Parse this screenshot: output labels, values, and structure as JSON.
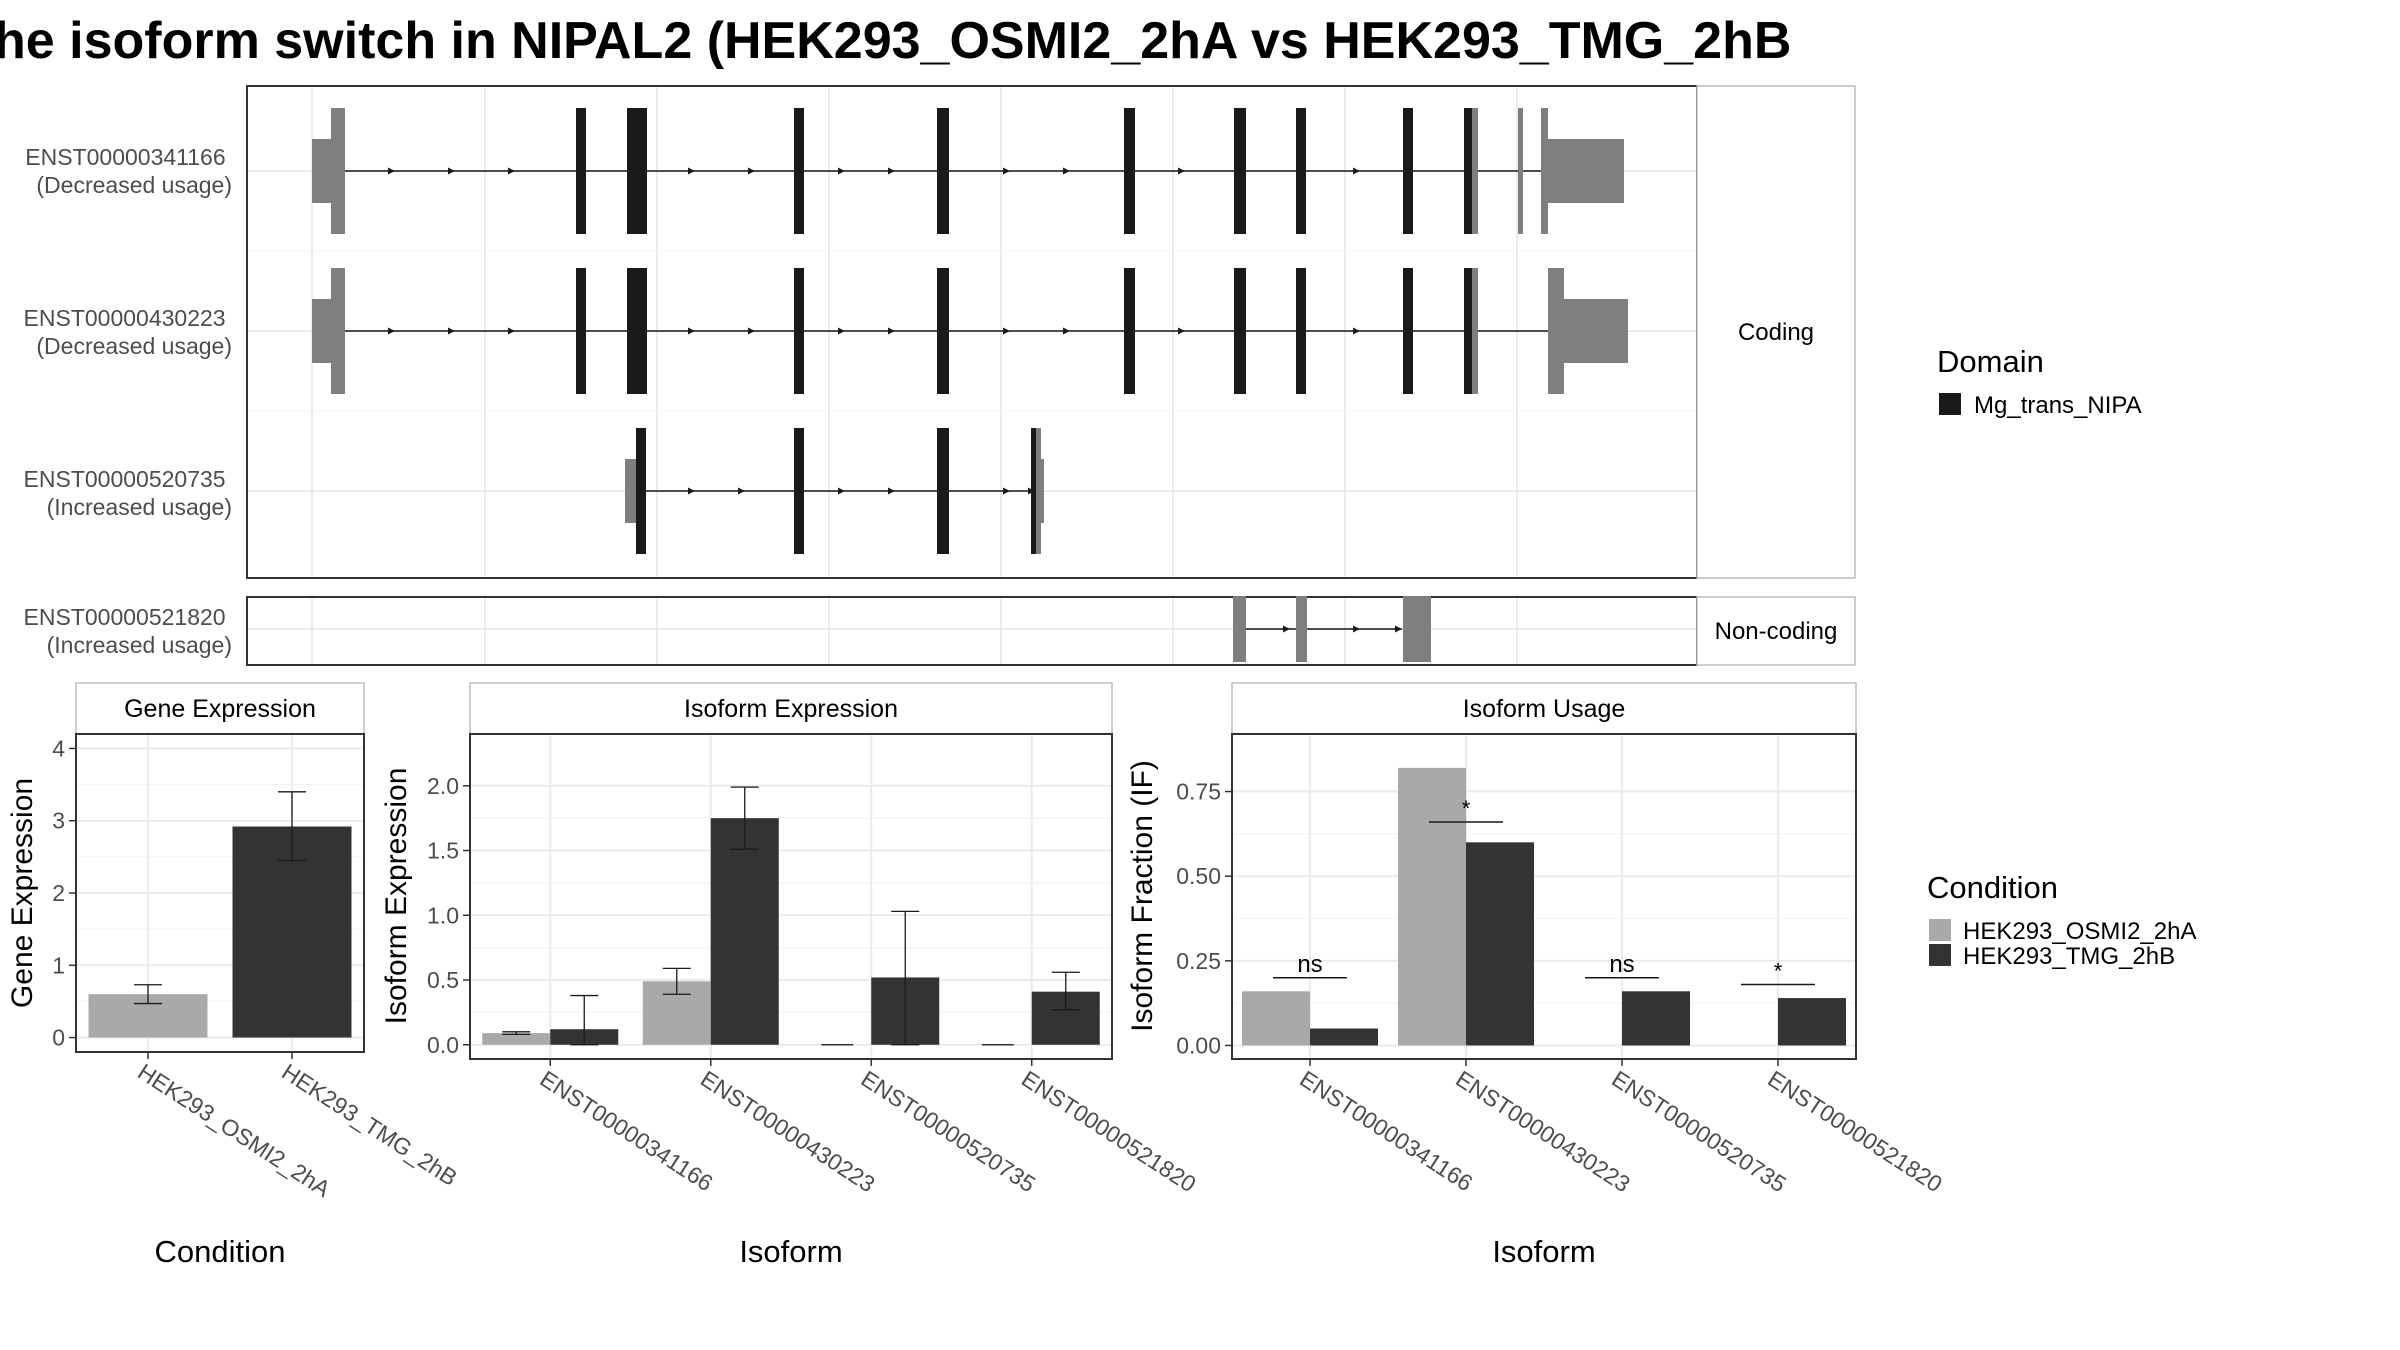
{
  "title": "he isoform switch in NIPAL2 (HEK293_OSMI2_2hA vs HEK293_TMG_2hB",
  "colors": {
    "condition_a": "#a9a9a9",
    "condition_b": "#333333",
    "domain": "#1a1a1a",
    "utr": "#7f7f7f",
    "grid": "#ebebeb",
    "strip_border": "#bdbdbd"
  },
  "structure": {
    "coding_label": "Coding",
    "noncoding_label": "Non-coding",
    "transcripts": [
      {
        "id": "ENST00000341166",
        "note": "(Decreased usage)",
        "group": "coding"
      },
      {
        "id": "ENST00000430223",
        "note": "(Decreased usage)",
        "group": "coding"
      },
      {
        "id": "ENST00000520735",
        "note": "(Increased usage)",
        "group": "coding"
      },
      {
        "id": "ENST00000521820",
        "note": "(Increased usage)",
        "group": "noncoding"
      }
    ]
  },
  "legend_domain": {
    "title": "Domain",
    "items": [
      {
        "label": "Mg_trans_NIPA",
        "color": "#1a1a1a"
      }
    ]
  },
  "legend_condition": {
    "title": "Condition",
    "items": [
      {
        "label": "HEK293_OSMI2_2hA",
        "color": "#a9a9a9"
      },
      {
        "label": "HEK293_TMG_2hB",
        "color": "#333333"
      }
    ]
  },
  "chart_data": [
    {
      "type": "bar",
      "title": "Gene Expression",
      "xlabel": "Condition",
      "ylabel": "Gene Expression",
      "categories": [
        "HEK293_OSMI2_2hA",
        "HEK293_TMG_2hB"
      ],
      "values": [
        0.6,
        2.92
      ],
      "error": [
        [
          0.47,
          0.73
        ],
        [
          2.45,
          3.4
        ]
      ],
      "ylim": [
        -0.2,
        4.2
      ],
      "yticks": [
        0,
        1,
        2,
        3,
        4
      ],
      "grid": true
    },
    {
      "type": "bar",
      "title": "Isoform Expression",
      "xlabel": "Isoform",
      "ylabel": "Isoform Expression",
      "categories": [
        "ENST00000341166",
        "ENST00000430223",
        "ENST00000520735",
        "ENST00000521820"
      ],
      "series": [
        {
          "name": "HEK293_OSMI2_2hA",
          "values": [
            0.09,
            0.49,
            0.0,
            0.0
          ],
          "error": [
            [
              0.08,
              0.1
            ],
            [
              0.39,
              0.59
            ],
            [
              0.0,
              0.0
            ],
            [
              0.0,
              0.0
            ]
          ]
        },
        {
          "name": "HEK293_TMG_2hB",
          "values": [
            0.12,
            1.75,
            0.52,
            0.41
          ],
          "error": [
            [
              0.0,
              0.38
            ],
            [
              1.51,
              1.99
            ],
            [
              0.0,
              1.03
            ],
            [
              0.27,
              0.56
            ]
          ]
        }
      ],
      "ylim": [
        -0.11,
        2.4
      ],
      "yticks": [
        0.0,
        0.5,
        1.0,
        1.5,
        2.0
      ],
      "grid": true
    },
    {
      "type": "bar",
      "title": "Isoform Usage",
      "xlabel": "Isoform",
      "ylabel": "Isoform Fraction (IF)",
      "categories": [
        "ENST00000341166",
        "ENST00000430223",
        "ENST00000520735",
        "ENST00000521820"
      ],
      "series": [
        {
          "name": "HEK293_OSMI2_2hA",
          "values": [
            0.16,
            0.82,
            0.0,
            0.0
          ]
        },
        {
          "name": "HEK293_TMG_2hB",
          "values": [
            0.05,
            0.6,
            0.16,
            0.14
          ]
        }
      ],
      "significance": [
        {
          "label": "ns",
          "y": 0.2
        },
        {
          "label": "*",
          "y": 0.66
        },
        {
          "label": "ns",
          "y": 0.2
        },
        {
          "label": "*",
          "y": 0.18
        }
      ],
      "ylim": [
        -0.04,
        0.92
      ],
      "yticks": [
        0.0,
        0.25,
        0.5,
        0.75
      ],
      "grid": true
    }
  ]
}
